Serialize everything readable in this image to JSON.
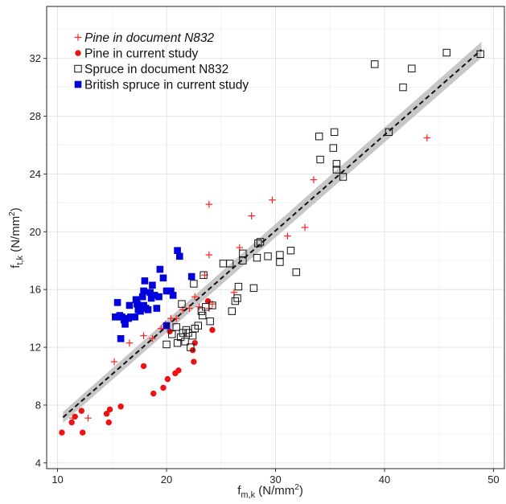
{
  "chart_data": {
    "type": "scatter",
    "title": "",
    "xlabel": {
      "main": "f",
      "sub": "m,k",
      "unit": " (N/mm",
      "sup": "2",
      "close": ")"
    },
    "ylabel": {
      "main": "f",
      "sub": "t,k",
      "unit": " (N/mm",
      "sup": "2",
      "close": ")"
    },
    "xlim": [
      9,
      51
    ],
    "ylim": [
      3.6,
      35.6
    ],
    "xticks": [
      10,
      20,
      30,
      40,
      50
    ],
    "yticks": [
      4,
      8,
      12,
      16,
      20,
      24,
      28,
      32
    ],
    "grid": true,
    "legend_position": "top-left",
    "series": [
      {
        "name": "Pine in document N832",
        "marker": "plus",
        "color": "#ff2020",
        "italic": true,
        "points": [
          [
            11.4,
            7.1
          ],
          [
            12.8,
            7.1
          ],
          [
            15.2,
            11.0
          ],
          [
            16.6,
            12.3
          ],
          [
            17.9,
            12.8
          ],
          [
            18.7,
            12.6
          ],
          [
            19.5,
            13.3
          ],
          [
            19.9,
            13.6
          ],
          [
            20.4,
            14.0
          ],
          [
            20.9,
            14.0
          ],
          [
            21.5,
            14.6
          ],
          [
            22.1,
            14.7
          ],
          [
            22.6,
            15.5
          ],
          [
            23.0,
            14.8
          ],
          [
            23.5,
            17.0
          ],
          [
            23.9,
            14.7
          ],
          [
            24.2,
            15.0
          ],
          [
            23.9,
            18.4
          ],
          [
            23.9,
            21.9
          ],
          [
            26.2,
            15.8
          ],
          [
            26.7,
            18.9
          ],
          [
            27.8,
            21.1
          ],
          [
            29.7,
            22.2
          ],
          [
            31.1,
            19.7
          ],
          [
            32.7,
            20.3
          ],
          [
            33.5,
            23.6
          ],
          [
            43.9,
            26.5
          ]
        ]
      },
      {
        "name": "Pine in current study",
        "marker": "circle",
        "color": "#ee1111",
        "italic": false,
        "points": [
          [
            10.4,
            6.1
          ],
          [
            11.3,
            6.8
          ],
          [
            11.6,
            7.2
          ],
          [
            12.2,
            7.6
          ],
          [
            12.3,
            6.1
          ],
          [
            14.5,
            7.4
          ],
          [
            14.7,
            6.8
          ],
          [
            14.8,
            7.7
          ],
          [
            15.8,
            7.9
          ],
          [
            17.9,
            10.7
          ],
          [
            18.8,
            8.8
          ],
          [
            19.7,
            9.2
          ],
          [
            20.1,
            9.8
          ],
          [
            20.8,
            10.2
          ],
          [
            21.1,
            10.4
          ],
          [
            22.5,
            11.0
          ],
          [
            22.4,
            11.8
          ],
          [
            22.6,
            12.3
          ],
          [
            23.8,
            15.2
          ],
          [
            24.2,
            13.2
          ],
          [
            20.3,
            13.1
          ]
        ]
      },
      {
        "name": "Spruce in document N832",
        "marker": "square-open",
        "color": "#111111",
        "italic": false,
        "points": [
          [
            20.0,
            12.2
          ],
          [
            20.5,
            12.9
          ],
          [
            20.9,
            13.4
          ],
          [
            21.0,
            12.3
          ],
          [
            21.3,
            12.7
          ],
          [
            21.5,
            13.0
          ],
          [
            21.7,
            12.4
          ],
          [
            21.8,
            13.2
          ],
          [
            22.0,
            13.0
          ],
          [
            22.2,
            12.0
          ],
          [
            22.4,
            12.8
          ],
          [
            22.6,
            13.3
          ],
          [
            22.9,
            13.5
          ],
          [
            23.2,
            14.5
          ],
          [
            23.3,
            14.2
          ],
          [
            23.6,
            14.8
          ],
          [
            24.0,
            13.8
          ],
          [
            24.2,
            14.9
          ],
          [
            21.4,
            15.0
          ],
          [
            22.5,
            16.4
          ],
          [
            23.4,
            17.0
          ],
          [
            25.2,
            17.8
          ],
          [
            25.8,
            17.8
          ],
          [
            26.0,
            14.5
          ],
          [
            26.3,
            15.2
          ],
          [
            26.5,
            15.4
          ],
          [
            26.6,
            16.2
          ],
          [
            27.0,
            18.0
          ],
          [
            27.0,
            18.5
          ],
          [
            28.0,
            16.1
          ],
          [
            28.3,
            18.2
          ],
          [
            28.4,
            19.2
          ],
          [
            28.6,
            19.3
          ],
          [
            29.3,
            18.3
          ],
          [
            30.4,
            18.4
          ],
          [
            30.4,
            17.9
          ],
          [
            31.4,
            18.7
          ],
          [
            31.9,
            17.2
          ],
          [
            34.0,
            26.6
          ],
          [
            34.1,
            25.0
          ],
          [
            35.4,
            26.9
          ],
          [
            35.3,
            25.8
          ],
          [
            35.6,
            24.7
          ],
          [
            35.6,
            24.3
          ],
          [
            36.2,
            23.8
          ],
          [
            39.1,
            31.6
          ],
          [
            40.4,
            26.9
          ],
          [
            41.7,
            30.0
          ],
          [
            42.5,
            31.3
          ],
          [
            45.7,
            32.4
          ],
          [
            48.8,
            32.3
          ]
        ]
      },
      {
        "name": "British spruce in current study",
        "marker": "square",
        "color": "#0000dd",
        "italic": false,
        "points": [
          [
            15.3,
            14.1
          ],
          [
            15.5,
            15.1
          ],
          [
            15.7,
            14.2
          ],
          [
            15.8,
            12.6
          ],
          [
            15.9,
            14.1
          ],
          [
            16.1,
            13.9
          ],
          [
            16.2,
            13.6
          ],
          [
            16.5,
            14.0
          ],
          [
            16.6,
            14.9
          ],
          [
            16.7,
            14.1
          ],
          [
            17.1,
            14.1
          ],
          [
            17.2,
            15.3
          ],
          [
            17.3,
            15.0
          ],
          [
            17.4,
            14.6
          ],
          [
            17.6,
            14.5
          ],
          [
            17.8,
            15.5
          ],
          [
            17.9,
            15.9
          ],
          [
            17.9,
            14.9
          ],
          [
            18.0,
            16.6
          ],
          [
            18.1,
            14.7
          ],
          [
            18.3,
            14.6
          ],
          [
            18.5,
            15.8
          ],
          [
            18.6,
            15.4
          ],
          [
            18.7,
            16.3
          ],
          [
            18.9,
            15.6
          ],
          [
            19.1,
            14.7
          ],
          [
            19.3,
            15.5
          ],
          [
            19.4,
            17.4
          ],
          [
            19.7,
            16.8
          ],
          [
            20.0,
            15.9
          ],
          [
            20.0,
            13.5
          ],
          [
            20.4,
            15.9
          ],
          [
            20.6,
            15.6
          ],
          [
            21.0,
            18.7
          ],
          [
            21.2,
            18.3
          ],
          [
            22.3,
            16.9
          ]
        ]
      }
    ],
    "regression": {
      "style": "dashed",
      "color": "#111111",
      "band_color": "#bdbdbd",
      "x": [
        10.5,
        48.9
      ],
      "y": [
        7.15,
        32.6
      ],
      "band_halfwidth": [
        0.38,
        0.55
      ]
    }
  }
}
